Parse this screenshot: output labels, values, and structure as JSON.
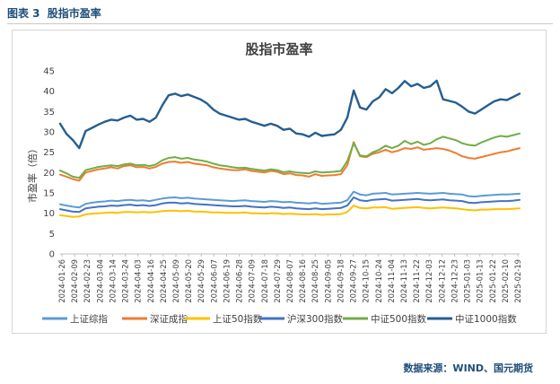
{
  "figure": {
    "label": "图表 3",
    "caption": "股指市盈率",
    "source": "数据来源：WIND、国元期货"
  },
  "colors": {
    "上证综指": "#5b9bd5",
    "深证成指": "#ed7d31",
    "上证50指数": "#ffc000",
    "沪深300指数": "#4472c4",
    "中证500指数": "#70ad47",
    "中证1000指数": "#255e91"
  },
  "chart_data": {
    "type": "line",
    "title": "股指市盈率",
    "xlabel": "",
    "ylabel": "市盈率（倍）",
    "ylim": [
      0,
      45
    ],
    "yticks": [
      0,
      5,
      10,
      15,
      20,
      25,
      30,
      35,
      40,
      45
    ],
    "grid": false,
    "legend_position": "bottom",
    "x_tick_labels": [
      "2024-01-26",
      "2024-02-09",
      "2024-02-23",
      "2024-03-04",
      "2024-03-14",
      "2024-03-24",
      "2024-04-03",
      "2024-04-16",
      "2024-04-25",
      "2024-05-09",
      "2024-05-20",
      "2024-05-29",
      "2024-06-07",
      "2024-06-19",
      "2024-06-28",
      "2024-07-09",
      "2024-07-18",
      "2024-07-29",
      "2024-08-07",
      "2024-08-16",
      "2024-08-25",
      "2024-09-05",
      "2024-09-18",
      "2024-09-27",
      "2024-10-15",
      "2024-10-24",
      "2024-11-04",
      "2024-11-13",
      "2024-11-22",
      "2024-12-03",
      "2024-12-12",
      "2024-12-23",
      "2025-01-03",
      "2025-01-13",
      "2025-01-22",
      "2025-02-10",
      "2025-02-19"
    ],
    "x": [
      0,
      1,
      2,
      3,
      4,
      5,
      6,
      7,
      8,
      9,
      10,
      11,
      12,
      13,
      14,
      15,
      16,
      17,
      18,
      19,
      20,
      21,
      22,
      23,
      24,
      25,
      26,
      27,
      28,
      29,
      30,
      31,
      32,
      33,
      34,
      35,
      36,
      37,
      38,
      39,
      40,
      41,
      42,
      43,
      44,
      45,
      46,
      47,
      48,
      49,
      50,
      51,
      52,
      53,
      54,
      55,
      56,
      57,
      58,
      59,
      60,
      61,
      62,
      63,
      64,
      65,
      66,
      67,
      68,
      69,
      70,
      71,
      72
    ],
    "series": [
      {
        "name": "上证综指",
        "values": [
          12.2,
          11.9,
          11.6,
          11.4,
          12.3,
          12.6,
          12.8,
          12.9,
          13.1,
          13.0,
          13.2,
          13.3,
          13.1,
          13.2,
          13.0,
          13.3,
          13.6,
          13.8,
          13.9,
          13.7,
          13.8,
          13.6,
          13.5,
          13.4,
          13.3,
          13.2,
          13.1,
          13.0,
          13.1,
          13.2,
          13.0,
          12.9,
          12.8,
          13.0,
          12.9,
          12.7,
          12.8,
          12.6,
          12.5,
          12.4,
          12.6,
          12.3,
          12.4,
          12.5,
          12.6,
          13.2,
          15.3,
          14.6,
          14.4,
          14.8,
          14.9,
          15.0,
          14.6,
          14.7,
          14.8,
          14.9,
          15.0,
          14.9,
          14.8,
          14.9,
          15.0,
          14.8,
          14.7,
          14.6,
          14.2,
          14.1,
          14.3,
          14.4,
          14.5,
          14.6,
          14.6,
          14.7,
          14.8
        ]
      },
      {
        "name": "深证成指",
        "values": [
          19.5,
          19.0,
          18.4,
          18.0,
          20.0,
          20.4,
          20.8,
          21.0,
          21.3,
          21.0,
          21.6,
          21.8,
          21.3,
          21.4,
          21.0,
          21.4,
          22.2,
          22.6,
          22.7,
          22.4,
          22.6,
          22.2,
          22.0,
          21.8,
          21.3,
          21.0,
          20.8,
          20.6,
          20.6,
          20.8,
          20.4,
          20.2,
          20.0,
          20.4,
          20.2,
          19.6,
          19.8,
          19.4,
          19.3,
          19.0,
          19.6,
          19.2,
          19.3,
          19.4,
          19.6,
          21.8,
          27.5,
          24.0,
          23.8,
          24.6,
          25.0,
          25.6,
          25.0,
          25.4,
          26.0,
          25.8,
          26.2,
          25.6,
          25.8,
          26.0,
          25.8,
          25.4,
          24.8,
          24.0,
          23.6,
          23.4,
          23.8,
          24.2,
          24.6,
          25.0,
          25.2,
          25.6,
          26.0
        ]
      },
      {
        "name": "上证50指数",
        "values": [
          9.5,
          9.3,
          9.1,
          9.2,
          9.7,
          9.9,
          10.0,
          10.1,
          10.2,
          10.1,
          10.3,
          10.3,
          10.2,
          10.3,
          10.2,
          10.3,
          10.5,
          10.6,
          10.6,
          10.5,
          10.6,
          10.4,
          10.4,
          10.3,
          10.2,
          10.2,
          10.1,
          10.1,
          10.1,
          10.2,
          10.0,
          10.0,
          9.9,
          10.0,
          10.0,
          9.8,
          9.9,
          9.8,
          9.7,
          9.7,
          9.8,
          9.6,
          9.7,
          9.7,
          9.8,
          10.3,
          11.9,
          11.3,
          11.2,
          11.4,
          11.4,
          11.5,
          11.1,
          11.2,
          11.3,
          11.4,
          11.5,
          11.3,
          11.2,
          11.3,
          11.4,
          11.3,
          11.2,
          11.0,
          10.8,
          10.7,
          10.9,
          10.9,
          11.0,
          11.0,
          11.0,
          11.1,
          11.2
        ]
      },
      {
        "name": "沪深300指数",
        "values": [
          11.0,
          10.7,
          10.4,
          10.3,
          11.2,
          11.4,
          11.6,
          11.7,
          11.9,
          11.8,
          12.0,
          12.1,
          11.9,
          12.0,
          11.8,
          12.0,
          12.4,
          12.6,
          12.6,
          12.4,
          12.5,
          12.3,
          12.2,
          12.1,
          12.0,
          11.9,
          11.8,
          11.7,
          11.7,
          11.8,
          11.6,
          11.5,
          11.4,
          11.6,
          11.5,
          11.3,
          11.4,
          11.2,
          11.1,
          11.0,
          11.2,
          11.0,
          11.1,
          11.2,
          11.3,
          11.9,
          13.9,
          13.2,
          13.0,
          13.3,
          13.4,
          13.5,
          13.1,
          13.2,
          13.3,
          13.4,
          13.5,
          13.3,
          13.2,
          13.3,
          13.4,
          13.2,
          13.1,
          13.0,
          12.6,
          12.5,
          12.7,
          12.8,
          12.9,
          13.0,
          13.0,
          13.1,
          13.3
        ]
      },
      {
        "name": "中证500指数",
        "values": [
          20.5,
          19.8,
          19.0,
          18.7,
          20.6,
          21.0,
          21.4,
          21.6,
          21.8,
          21.6,
          22.0,
          22.2,
          21.8,
          21.9,
          21.6,
          22.0,
          23.0,
          23.6,
          23.8,
          23.4,
          23.6,
          23.2,
          23.0,
          22.7,
          22.2,
          21.8,
          21.6,
          21.3,
          21.1,
          21.2,
          20.9,
          20.7,
          20.5,
          20.8,
          20.6,
          20.1,
          20.3,
          20.0,
          19.9,
          19.8,
          20.3,
          20.0,
          20.1,
          20.2,
          20.4,
          22.8,
          27.2,
          24.2,
          24.0,
          25.0,
          25.6,
          26.6,
          26.0,
          26.6,
          27.8,
          27.0,
          27.6,
          26.8,
          27.2,
          28.2,
          28.8,
          28.4,
          28.0,
          27.2,
          26.8,
          26.6,
          27.4,
          28.0,
          28.6,
          29.0,
          28.8,
          29.2,
          29.6
        ]
      },
      {
        "name": "中证1000指数",
        "values": [
          32.0,
          29.5,
          28.0,
          26.0,
          30.2,
          31.0,
          31.8,
          32.5,
          33.0,
          32.8,
          33.5,
          34.0,
          33.0,
          33.2,
          32.5,
          33.5,
          36.5,
          39.0,
          39.4,
          38.8,
          39.2,
          38.6,
          38.0,
          37.0,
          35.5,
          34.5,
          34.0,
          33.5,
          33.0,
          33.2,
          32.5,
          32.0,
          31.5,
          32.0,
          31.5,
          30.5,
          30.8,
          29.6,
          29.4,
          28.8,
          29.8,
          29.0,
          29.2,
          29.4,
          30.5,
          33.5,
          40.2,
          36.0,
          35.5,
          37.5,
          38.5,
          40.5,
          39.5,
          40.8,
          42.5,
          41.2,
          41.8,
          40.8,
          41.2,
          42.6,
          38.0,
          37.6,
          37.2,
          36.2,
          35.0,
          34.5,
          35.5,
          36.5,
          37.5,
          38.0,
          37.8,
          38.6,
          39.4
        ]
      }
    ]
  }
}
